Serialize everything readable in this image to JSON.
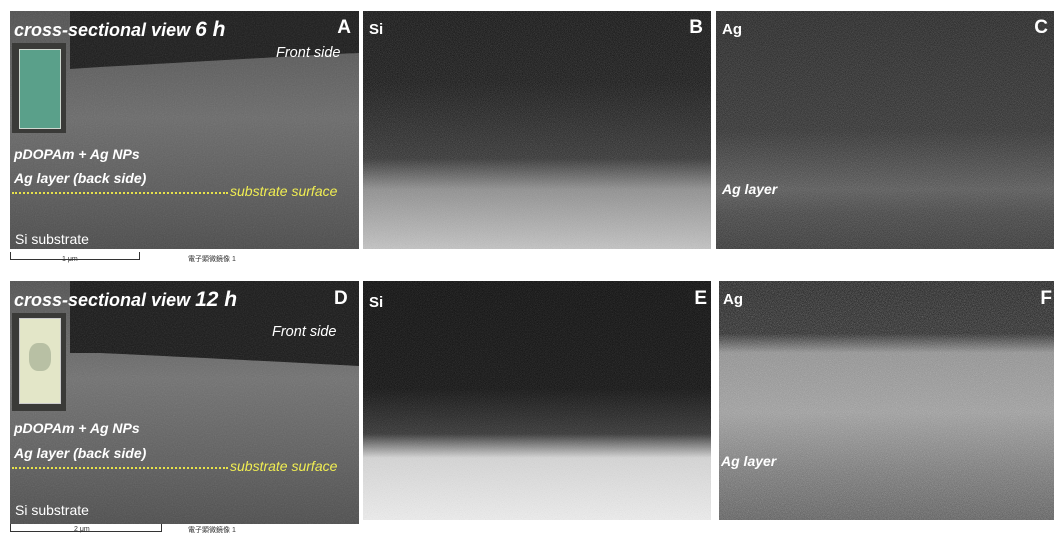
{
  "panels": {
    "A": {
      "letter": "A",
      "title_prefix": "cross-sectional view",
      "title_time": "6 h",
      "front_side": "Front side",
      "coating": "pDOPAm + Ag NPs",
      "ag_layer": "Ag layer (back side)",
      "substrate_surface": "substrate surface",
      "substrate": "Si substrate",
      "scale_label": "1 μm",
      "caption": "電子顕微鏡像 1"
    },
    "B": {
      "letter": "B",
      "element": "Si"
    },
    "C": {
      "letter": "C",
      "element": "Ag",
      "ag_layer": "Ag layer"
    },
    "D": {
      "letter": "D",
      "title_prefix": "cross-sectional view",
      "title_time": "12 h",
      "front_side": "Front side",
      "coating": "pDOPAm + Ag NPs",
      "ag_layer": "Ag layer (back side)",
      "substrate_surface": "substrate surface",
      "substrate": "Si substrate",
      "scale_label": "2 μm",
      "caption": "電子顕微鏡像 1"
    },
    "E": {
      "letter": "E",
      "element": "Si"
    },
    "F": {
      "letter": "F",
      "element": "Ag",
      "ag_layer": "Ag layer"
    }
  },
  "colors": {
    "annotation_text": "#ffffff",
    "substrate_surface_line": "#f1ee52",
    "background": "#000000"
  }
}
